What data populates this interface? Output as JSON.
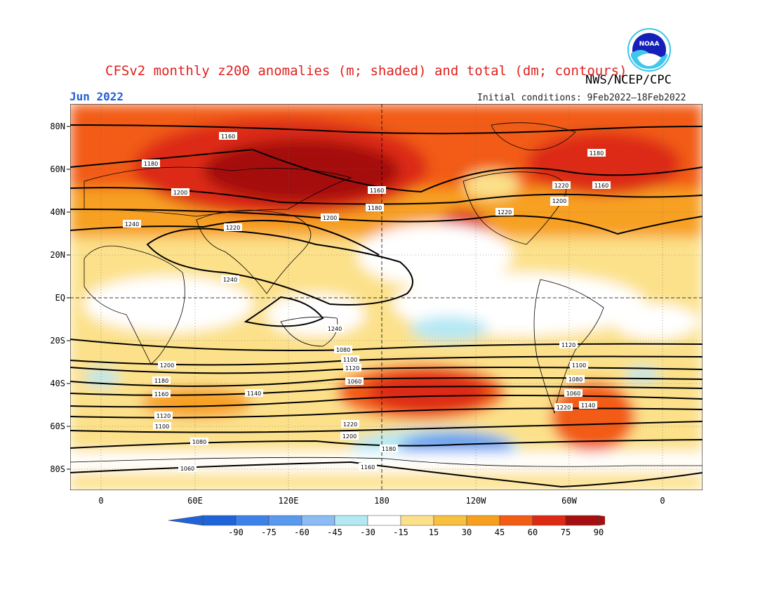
{
  "header": {
    "title": "CFSv2 monthly z200 anomalies (m; shaded) and total (dm; contours)",
    "agency": "NWS/NCEP/CPC",
    "month": "Jun 2022",
    "initial_conditions": "Initial conditions: 9Feb2022–18Feb2022",
    "logo_text": "NOAA"
  },
  "map": {
    "lat_labels": [
      "80N",
      "60N",
      "40N",
      "20N",
      "EQ",
      "20S",
      "40S",
      "60S",
      "80S"
    ],
    "lon_labels": [
      "0",
      "60E",
      "120E",
      "180",
      "120W",
      "60W",
      "0"
    ],
    "contour_labels": [
      "1160",
      "1180",
      "1200",
      "1220",
      "1240",
      "1240",
      "1240",
      "1180",
      "1200",
      "1220",
      "1160",
      "1180",
      "1200",
      "1220",
      "1200",
      "1180",
      "1160",
      "1140",
      "1120",
      "1100",
      "1080",
      "1060",
      "1220",
      "1200",
      "1180",
      "1160",
      "1120",
      "1100",
      "1080",
      "1060",
      "1220",
      "1200",
      "1180",
      "1160",
      "1140",
      "1120",
      "1100",
      "1080",
      "1060"
    ]
  },
  "legend": {
    "labels": [
      "-90",
      "-75",
      "-60",
      "-45",
      "-30",
      "-15",
      "15",
      "30",
      "45",
      "60",
      "75",
      "90"
    ],
    "colors": [
      "#1e64d8",
      "#3c82e8",
      "#5a9aee",
      "#8cbcf4",
      "#b4e8f4",
      "#ffffff",
      "#fce18a",
      "#f8c040",
      "#f7a020",
      "#f25c14",
      "#dd2a12",
      "#a50f0f"
    ]
  }
}
